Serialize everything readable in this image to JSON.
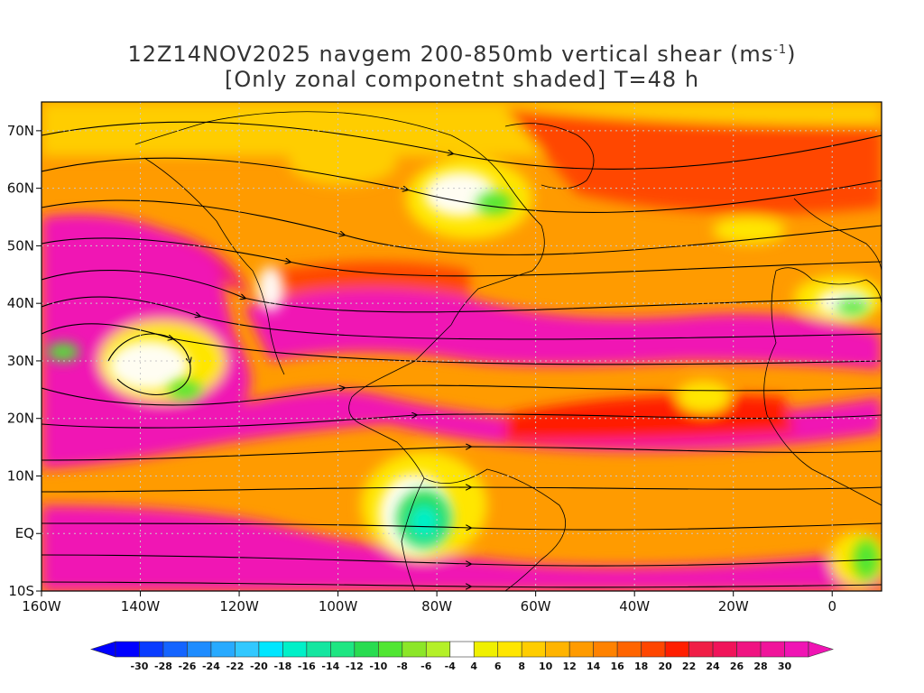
{
  "title": {
    "line1_prefix": "12Z14NOV2025 navgem 200-850mb vertical shear (ms",
    "line1_sup": "-1",
    "line1_suffix": ")",
    "line2": "[Only zonal componetnt shaded] T=48 h"
  },
  "chart_data": {
    "type": "heatmap",
    "lon_range": [
      -160,
      10
    ],
    "lat_range": [
      -10,
      75
    ],
    "x_ticks": [
      {
        "lon": -160,
        "label": "160W"
      },
      {
        "lon": -140,
        "label": "140W"
      },
      {
        "lon": -120,
        "label": "120W"
      },
      {
        "lon": -100,
        "label": "100W"
      },
      {
        "lon": -80,
        "label": "80W"
      },
      {
        "lon": -60,
        "label": "60W"
      },
      {
        "lon": -40,
        "label": "40W"
      },
      {
        "lon": -20,
        "label": "20W"
      },
      {
        "lon": 0,
        "label": "0"
      }
    ],
    "y_ticks": [
      {
        "lat": 70,
        "label": "70N"
      },
      {
        "lat": 60,
        "label": "60N"
      },
      {
        "lat": 50,
        "label": "50N"
      },
      {
        "lat": 40,
        "label": "40N"
      },
      {
        "lat": 30,
        "label": "30N"
      },
      {
        "lat": 20,
        "label": "20N"
      },
      {
        "lat": 10,
        "label": "10N"
      },
      {
        "lat": 0,
        "label": "EQ"
      },
      {
        "lat": -10,
        "label": "10S"
      }
    ],
    "grid": true,
    "legend_placement": "bottom",
    "colorbar": {
      "labels": [
        "-30",
        "-28",
        "-26",
        "-24",
        "-22",
        "-20",
        "-18",
        "-16",
        "-14",
        "-12",
        "-10",
        "-8",
        "-6",
        "-4",
        "4",
        "6",
        "8",
        "10",
        "12",
        "14",
        "16",
        "18",
        "20",
        "22",
        "24",
        "26",
        "28",
        "30"
      ],
      "colors": [
        "#0000ff",
        "#0a3cff",
        "#1464ff",
        "#1e8cff",
        "#28aaff",
        "#32c8ff",
        "#00e6ff",
        "#00f0c8",
        "#14e6a0",
        "#1ee682",
        "#28dc50",
        "#50e632",
        "#8ce628",
        "#b4f028",
        "#ffffff",
        "#f0f000",
        "#ffe600",
        "#ffcd00",
        "#ffb400",
        "#ff9b00",
        "#ff8200",
        "#ff6400",
        "#ff4600",
        "#ff1e00",
        "#f01e46",
        "#f0145a",
        "#f01482",
        "#f0149b",
        "#f014b4"
      ],
      "underflow_color": "#0000ff",
      "overflow_color": "#f014b4"
    }
  }
}
